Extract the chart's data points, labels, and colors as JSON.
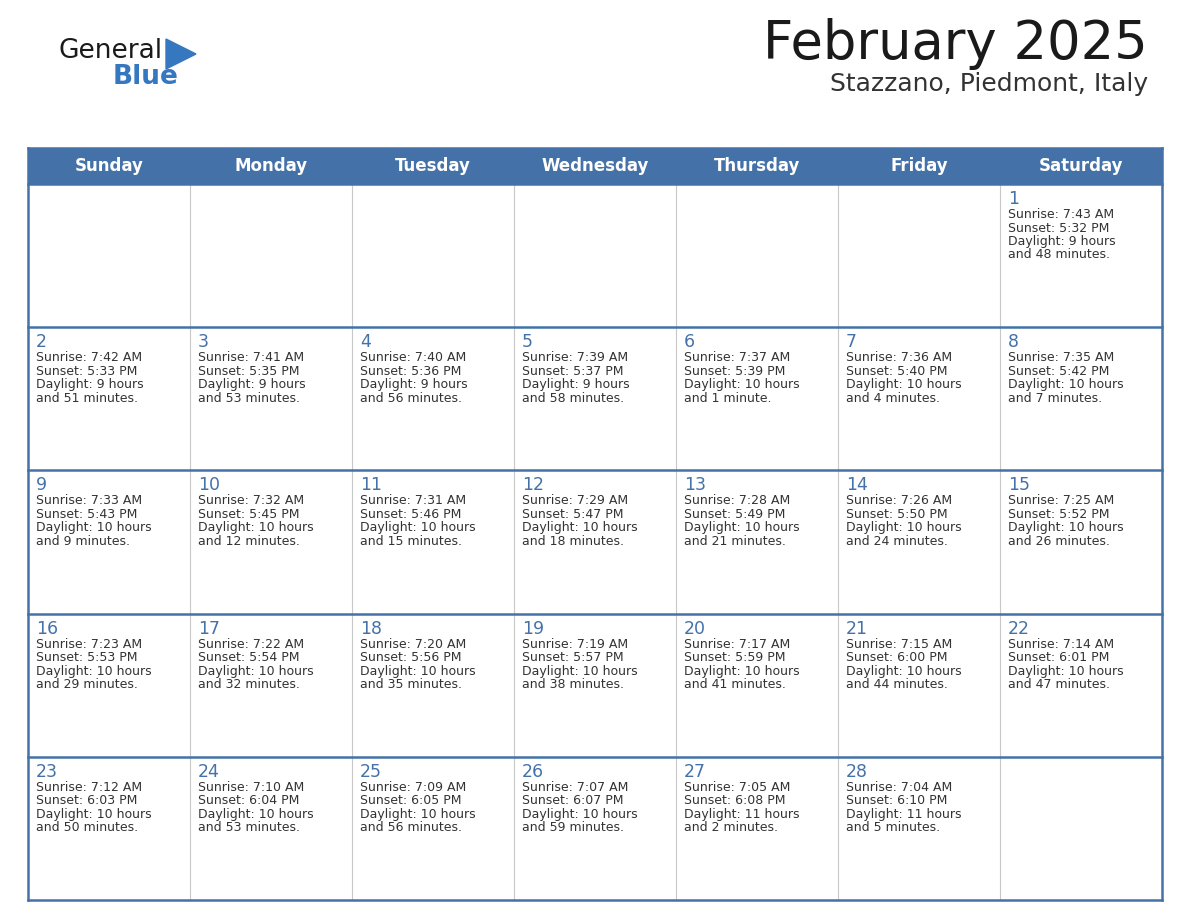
{
  "title": "February 2025",
  "subtitle": "Stazzano, Piedmont, Italy",
  "header_color": "#4472A8",
  "header_text_color": "#FFFFFF",
  "border_color": "#4472A8",
  "row_separator_color": "#4472A8",
  "col_separator_color": "#BBBBBB",
  "day_names": [
    "Sunday",
    "Monday",
    "Tuesday",
    "Wednesday",
    "Thursday",
    "Friday",
    "Saturday"
  ],
  "title_color": "#1a1a1a",
  "subtitle_color": "#333333",
  "day_number_color": "#4472A8",
  "info_text_color": "#333333",
  "logo_general_color": "#1a1a1a",
  "logo_blue_color": "#3578C0",
  "cell_bg_even": "#F5F5F5",
  "cell_bg_odd": "#FFFFFF",
  "calendar": [
    [
      null,
      null,
      null,
      null,
      null,
      null,
      {
        "day": 1,
        "sunrise": "7:43 AM",
        "sunset": "5:32 PM",
        "daylight": "9 hours\nand 48 minutes."
      }
    ],
    [
      {
        "day": 2,
        "sunrise": "7:42 AM",
        "sunset": "5:33 PM",
        "daylight": "9 hours\nand 51 minutes."
      },
      {
        "day": 3,
        "sunrise": "7:41 AM",
        "sunset": "5:35 PM",
        "daylight": "9 hours\nand 53 minutes."
      },
      {
        "day": 4,
        "sunrise": "7:40 AM",
        "sunset": "5:36 PM",
        "daylight": "9 hours\nand 56 minutes."
      },
      {
        "day": 5,
        "sunrise": "7:39 AM",
        "sunset": "5:37 PM",
        "daylight": "9 hours\nand 58 minutes."
      },
      {
        "day": 6,
        "sunrise": "7:37 AM",
        "sunset": "5:39 PM",
        "daylight": "10 hours\nand 1 minute."
      },
      {
        "day": 7,
        "sunrise": "7:36 AM",
        "sunset": "5:40 PM",
        "daylight": "10 hours\nand 4 minutes."
      },
      {
        "day": 8,
        "sunrise": "7:35 AM",
        "sunset": "5:42 PM",
        "daylight": "10 hours\nand 7 minutes."
      }
    ],
    [
      {
        "day": 9,
        "sunrise": "7:33 AM",
        "sunset": "5:43 PM",
        "daylight": "10 hours\nand 9 minutes."
      },
      {
        "day": 10,
        "sunrise": "7:32 AM",
        "sunset": "5:45 PM",
        "daylight": "10 hours\nand 12 minutes."
      },
      {
        "day": 11,
        "sunrise": "7:31 AM",
        "sunset": "5:46 PM",
        "daylight": "10 hours\nand 15 minutes."
      },
      {
        "day": 12,
        "sunrise": "7:29 AM",
        "sunset": "5:47 PM",
        "daylight": "10 hours\nand 18 minutes."
      },
      {
        "day": 13,
        "sunrise": "7:28 AM",
        "sunset": "5:49 PM",
        "daylight": "10 hours\nand 21 minutes."
      },
      {
        "day": 14,
        "sunrise": "7:26 AM",
        "sunset": "5:50 PM",
        "daylight": "10 hours\nand 24 minutes."
      },
      {
        "day": 15,
        "sunrise": "7:25 AM",
        "sunset": "5:52 PM",
        "daylight": "10 hours\nand 26 minutes."
      }
    ],
    [
      {
        "day": 16,
        "sunrise": "7:23 AM",
        "sunset": "5:53 PM",
        "daylight": "10 hours\nand 29 minutes."
      },
      {
        "day": 17,
        "sunrise": "7:22 AM",
        "sunset": "5:54 PM",
        "daylight": "10 hours\nand 32 minutes."
      },
      {
        "day": 18,
        "sunrise": "7:20 AM",
        "sunset": "5:56 PM",
        "daylight": "10 hours\nand 35 minutes."
      },
      {
        "day": 19,
        "sunrise": "7:19 AM",
        "sunset": "5:57 PM",
        "daylight": "10 hours\nand 38 minutes."
      },
      {
        "day": 20,
        "sunrise": "7:17 AM",
        "sunset": "5:59 PM",
        "daylight": "10 hours\nand 41 minutes."
      },
      {
        "day": 21,
        "sunrise": "7:15 AM",
        "sunset": "6:00 PM",
        "daylight": "10 hours\nand 44 minutes."
      },
      {
        "day": 22,
        "sunrise": "7:14 AM",
        "sunset": "6:01 PM",
        "daylight": "10 hours\nand 47 minutes."
      }
    ],
    [
      {
        "day": 23,
        "sunrise": "7:12 AM",
        "sunset": "6:03 PM",
        "daylight": "10 hours\nand 50 minutes."
      },
      {
        "day": 24,
        "sunrise": "7:10 AM",
        "sunset": "6:04 PM",
        "daylight": "10 hours\nand 53 minutes."
      },
      {
        "day": 25,
        "sunrise": "7:09 AM",
        "sunset": "6:05 PM",
        "daylight": "10 hours\nand 56 minutes."
      },
      {
        "day": 26,
        "sunrise": "7:07 AM",
        "sunset": "6:07 PM",
        "daylight": "10 hours\nand 59 minutes."
      },
      {
        "day": 27,
        "sunrise": "7:05 AM",
        "sunset": "6:08 PM",
        "daylight": "11 hours\nand 2 minutes."
      },
      {
        "day": 28,
        "sunrise": "7:04 AM",
        "sunset": "6:10 PM",
        "daylight": "11 hours\nand 5 minutes."
      },
      null
    ]
  ]
}
